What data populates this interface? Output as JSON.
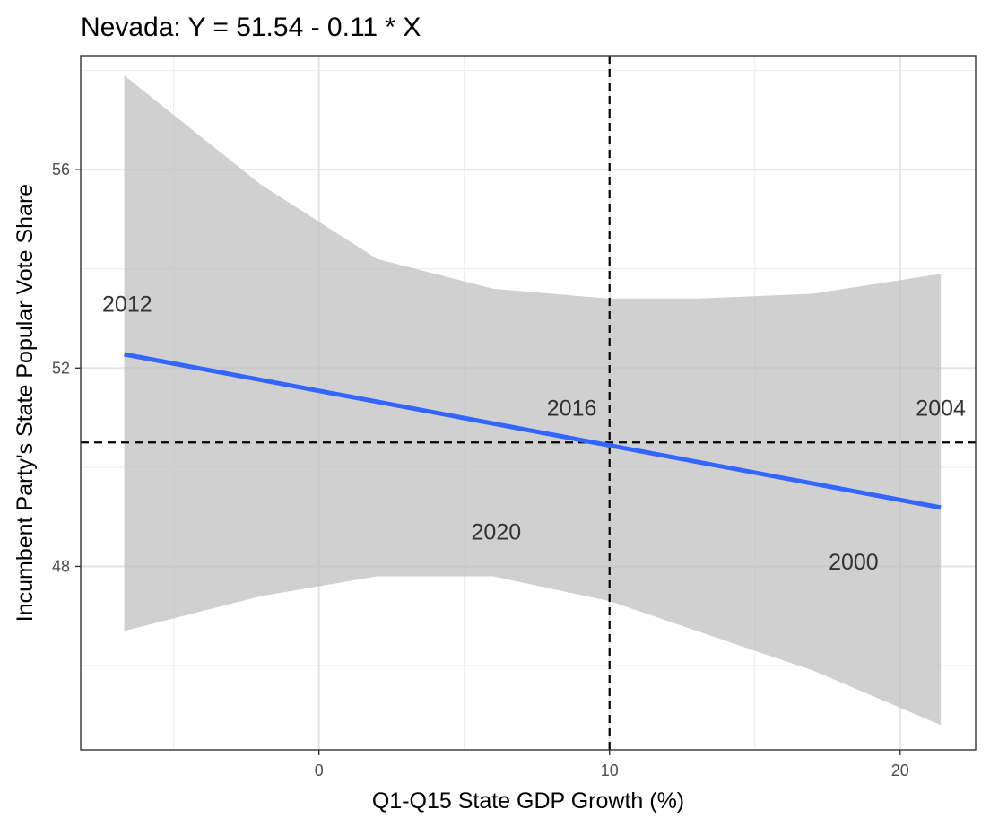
{
  "chart_data": {
    "type": "scatter",
    "title": "Nevada: Y = 51.54 - 0.11 * X",
    "xlabel": "Q1-Q15 State GDP Growth (%)",
    "ylabel": "Incumbent Party's State Popular Vote Share",
    "xlim": [
      -8.2,
      22.6
    ],
    "ylim": [
      44.3,
      58.3
    ],
    "x_ticks": [
      0,
      10,
      20
    ],
    "y_ticks": [
      48,
      52,
      56
    ],
    "x_tick_labels": [
      "0",
      "10",
      "20"
    ],
    "y_tick_labels": [
      "48",
      "52",
      "56"
    ],
    "grid": true,
    "points": [
      {
        "label": "2012",
        "x": -6.6,
        "y": 53.3
      },
      {
        "label": "2016",
        "x": 8.7,
        "y": 51.2
      },
      {
        "label": "2004",
        "x": 21.4,
        "y": 51.2
      },
      {
        "label": "2020",
        "x": 6.1,
        "y": 48.7
      },
      {
        "label": "2000",
        "x": 18.4,
        "y": 48.1
      }
    ],
    "fit_line": {
      "intercept": 51.54,
      "slope": -0.11,
      "x_range": [
        -6.7,
        21.4
      ],
      "color": "#3366FF"
    },
    "confidence_band": {
      "color": "#BEBEBE",
      "x": [
        -6.7,
        -2.0,
        2.0,
        6.0,
        10.0,
        13.0,
        17.0,
        21.4
      ],
      "lower": [
        46.7,
        47.4,
        47.8,
        47.8,
        47.3,
        46.7,
        45.9,
        44.8
      ],
      "upper": [
        57.9,
        55.7,
        54.2,
        53.6,
        53.4,
        53.4,
        53.5,
        53.9
      ]
    },
    "reference_lines": {
      "vline_x": 10.0,
      "hline_y": 50.5,
      "style": "dashed",
      "color": "#000000"
    }
  }
}
